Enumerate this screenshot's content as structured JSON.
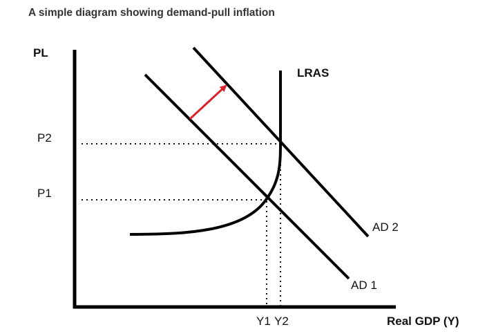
{
  "title": "A simple diagram showing demand-pull inflation",
  "axes": {
    "y_label": "PL",
    "x_label": "Real GDP (Y)"
  },
  "curves": {
    "lras": "LRAS",
    "ad1": "AD 1",
    "ad2": "AD 2"
  },
  "price_levels": {
    "p1": "P1",
    "p2": "P2"
  },
  "output_levels": {
    "y1": "Y1",
    "y2": "Y2"
  },
  "colors": {
    "shift_arrow": "#d8232a",
    "lines": "#000000"
  }
}
